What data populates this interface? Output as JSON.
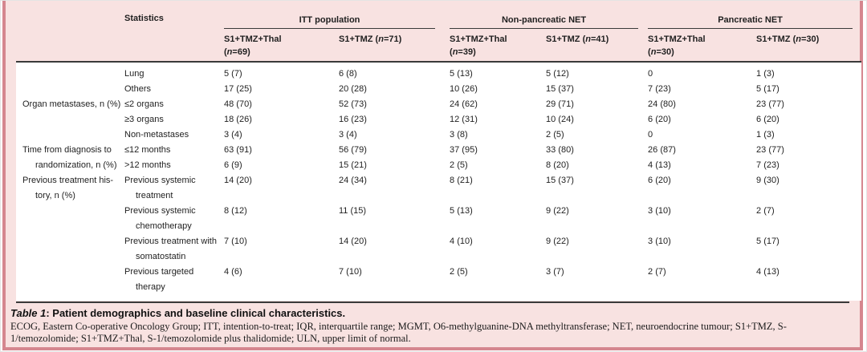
{
  "panel": {
    "background": "#f8e2e1",
    "border_color": "#d5868f",
    "rule_color": "#3a3a3a"
  },
  "table": {
    "statistics_header": "Statistics",
    "groups": [
      {
        "title": "ITT population",
        "arms": [
          {
            "drug": "S1+TMZ+Thal",
            "n": "69",
            "wrap": true
          },
          {
            "drug": "S1+TMZ",
            "n": "71",
            "wrap": false
          }
        ]
      },
      {
        "title": "Non-pancreatic NET",
        "arms": [
          {
            "drug": "S1+TMZ+Thal",
            "n": "39",
            "wrap": true
          },
          {
            "drug": "S1+TMZ",
            "n": "41",
            "wrap": false
          }
        ]
      },
      {
        "title": "Pancreatic NET",
        "arms": [
          {
            "drug": "S1+TMZ+Thal",
            "n": "30",
            "wrap": true
          },
          {
            "drug": "S1+TMZ",
            "n": "30",
            "wrap": false
          }
        ]
      }
    ],
    "rows": [
      {
        "group_lines": [],
        "stat_lines": [
          "Lung"
        ],
        "values": [
          "5 (7)",
          "6 (8)",
          "5 (13)",
          "5 (12)",
          "0",
          "1 (3)"
        ]
      },
      {
        "group_lines": [],
        "stat_lines": [
          "Others"
        ],
        "values": [
          "17 (25)",
          "20 (28)",
          "10 (26)",
          "15 (37)",
          "7 (23)",
          "5 (17)"
        ]
      },
      {
        "group_lines": [
          "Organ metastases, n (%)"
        ],
        "stat_lines": [
          "≤2 organs"
        ],
        "values": [
          "48 (70)",
          "52 (73)",
          "24 (62)",
          "29 (71)",
          "24 (80)",
          "23 (77)"
        ]
      },
      {
        "group_lines": [],
        "stat_lines": [
          "≥3 organs"
        ],
        "values": [
          "18 (26)",
          "16 (23)",
          "12 (31)",
          "10 (24)",
          "6 (20)",
          "6 (20)"
        ]
      },
      {
        "group_lines": [],
        "stat_lines": [
          "Non-metastases"
        ],
        "values": [
          "3 (4)",
          "3 (4)",
          "3 (8)",
          "2 (5)",
          "0",
          "1 (3)"
        ]
      },
      {
        "group_lines": [
          "Time from diagnosis to"
        ],
        "stat_lines": [
          "≤12 months"
        ],
        "values": [
          "63 (91)",
          "56 (79)",
          "37 (95)",
          "33 (80)",
          "26 (87)",
          "23 (77)"
        ]
      },
      {
        "group_lines": [
          "randomization, n (%)"
        ],
        "group_indent": true,
        "stat_lines": [
          ">12 months"
        ],
        "values": [
          "6 (9)",
          "15 (21)",
          "2 (5)",
          "8 (20)",
          "4 (13)",
          "7 (23)"
        ]
      },
      {
        "group_lines": [
          "Previous treatment his-",
          "tory, n (%)"
        ],
        "stat_lines": [
          "Previous systemic",
          "treatment"
        ],
        "values": [
          "14 (20)",
          "24 (34)",
          "8 (21)",
          "15 (37)",
          "6 (20)",
          "9 (30)"
        ]
      },
      {
        "group_lines": [],
        "stat_lines": [
          "Previous systemic",
          "chemotherapy"
        ],
        "values": [
          "8 (12)",
          "11 (15)",
          "5 (13)",
          "9 (22)",
          "3 (10)",
          "2 (7)"
        ]
      },
      {
        "group_lines": [],
        "stat_lines": [
          "Previous treatment with",
          "somatostatin"
        ],
        "values": [
          "7 (10)",
          "14 (20)",
          "4 (10)",
          "9 (22)",
          "3 (10)",
          "5 (17)"
        ]
      },
      {
        "group_lines": [],
        "stat_lines": [
          "Previous targeted",
          "therapy"
        ],
        "values": [
          "4 (6)",
          "7 (10)",
          "2 (5)",
          "3 (7)",
          "2 (7)",
          "4 (13)"
        ]
      }
    ]
  },
  "caption": {
    "label": "Table 1",
    "rest": ": Patient demographics and baseline clinical characteristics."
  },
  "footnote": "ECOG, Eastern Co-operative Oncology Group; ITT, intention-to-treat; IQR, interquartile range; MGMT, O6-methylguanine-DNA methyltransferase; NET, neuroendocrine tumour; S1+TMZ, S-1/temozolomide; S1+TMZ+Thal, S-1/temozolomide plus thalidomide; ULN, upper limit of normal."
}
